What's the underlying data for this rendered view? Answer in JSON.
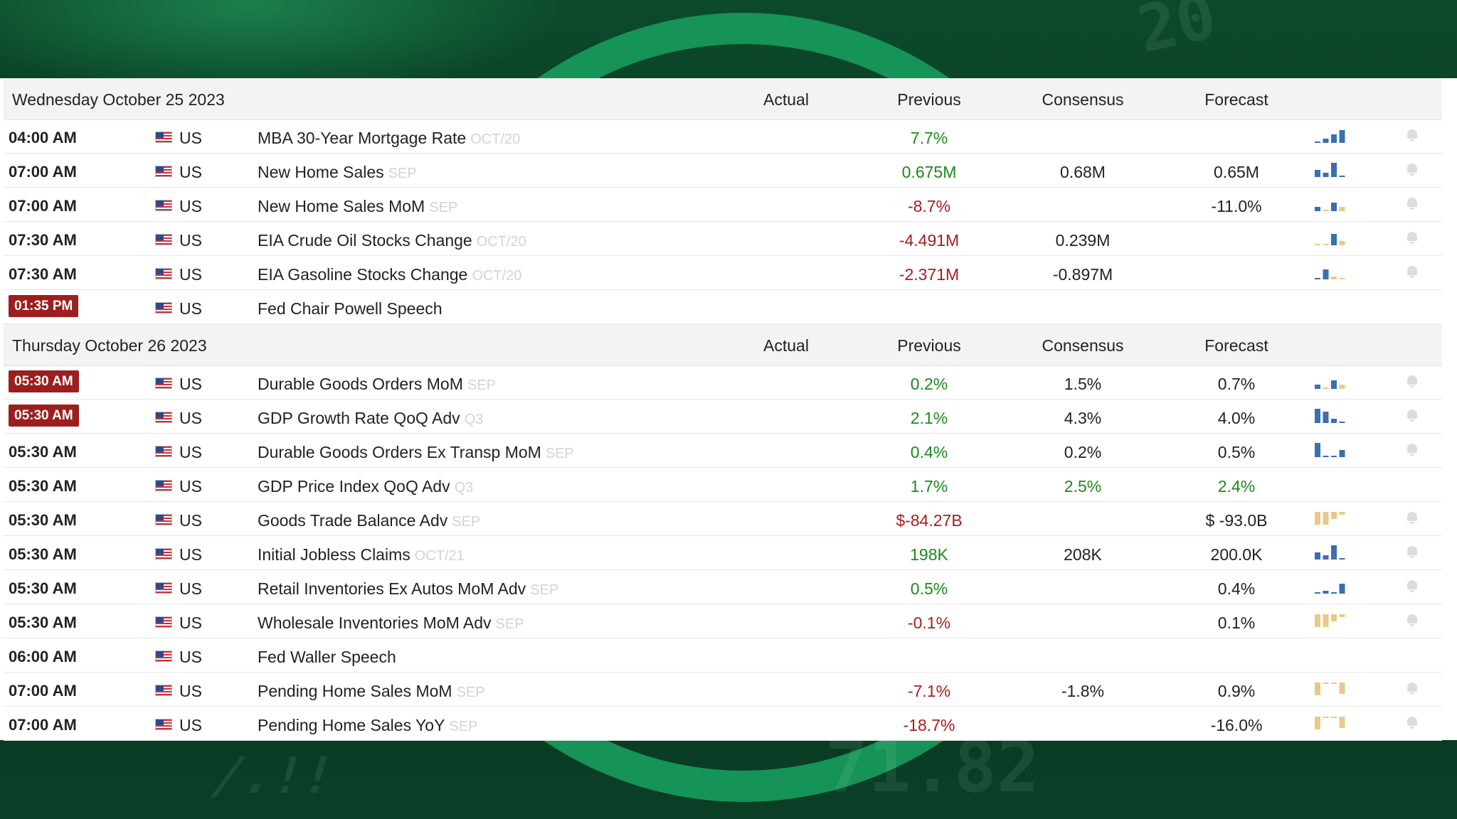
{
  "colors": {
    "positive": "#1a8a1a",
    "negative": "#a81c1c",
    "highlight_time": "#9c1f1f",
    "spark_blue": "#3a6fb0",
    "spark_gold": "#e8c98a"
  },
  "days": [
    {
      "date": "Wednesday October 25 2023",
      "columns": {
        "actual": "Actual",
        "previous": "Previous",
        "consensus": "Consensus",
        "forecast": "Forecast"
      },
      "rows": [
        {
          "time": "04:00 AM",
          "hl": false,
          "country": "US",
          "event": "MBA 30-Year Mortgage Rate",
          "ref": "OCT/20",
          "actual": "",
          "previous": "7.7%",
          "prev_color": "pos",
          "consensus": "",
          "cons_color": "",
          "forecast": "",
          "fc_color": "",
          "spark": "blue-rising",
          "bell": true
        },
        {
          "time": "07:00 AM",
          "hl": false,
          "country": "US",
          "event": "New Home Sales",
          "ref": "SEP",
          "actual": "",
          "previous": "0.675M",
          "prev_color": "pos",
          "consensus": "0.68M",
          "cons_color": "",
          "forecast": "0.65M",
          "fc_color": "",
          "spark": "blue-mixed",
          "bell": true
        },
        {
          "time": "07:00 AM",
          "hl": false,
          "country": "US",
          "event": "New Home Sales MoM",
          "ref": "SEP",
          "actual": "",
          "previous": "-8.7%",
          "prev_color": "neg",
          "consensus": "",
          "cons_color": "",
          "forecast": "-11.0%",
          "fc_color": "",
          "spark": "mixed-small",
          "bell": true
        },
        {
          "time": "07:30 AM",
          "hl": false,
          "country": "US",
          "event": "EIA Crude Oil Stocks Change",
          "ref": "OCT/20",
          "actual": "",
          "previous": "-4.491M",
          "prev_color": "neg",
          "consensus": "0.239M",
          "cons_color": "",
          "forecast": "",
          "fc_color": "",
          "spark": "gold-mostly",
          "bell": true
        },
        {
          "time": "07:30 AM",
          "hl": false,
          "country": "US",
          "event": "EIA Gasoline Stocks Change",
          "ref": "OCT/20",
          "actual": "",
          "previous": "-2.371M",
          "prev_color": "neg",
          "consensus": "-0.897M",
          "cons_color": "",
          "forecast": "",
          "fc_color": "",
          "spark": "blue-then-gold",
          "bell": true
        },
        {
          "time": "01:35 PM",
          "hl": true,
          "country": "US",
          "event": "Fed Chair Powell Speech",
          "ref": "",
          "actual": "",
          "previous": "",
          "prev_color": "",
          "consensus": "",
          "cons_color": "",
          "forecast": "",
          "fc_color": "",
          "spark": "",
          "bell": false
        }
      ]
    },
    {
      "date": "Thursday October 26 2023",
      "columns": {
        "actual": "Actual",
        "previous": "Previous",
        "consensus": "Consensus",
        "forecast": "Forecast"
      },
      "rows": [
        {
          "time": "05:30 AM",
          "hl": true,
          "country": "US",
          "event": "Durable Goods Orders MoM",
          "ref": "SEP",
          "actual": "",
          "previous": "0.2%",
          "prev_color": "pos",
          "consensus": "1.5%",
          "cons_color": "",
          "forecast": "0.7%",
          "fc_color": "",
          "spark": "mixed-small",
          "bell": true
        },
        {
          "time": "05:30 AM",
          "hl": true,
          "country": "US",
          "event": "GDP Growth Rate QoQ Adv",
          "ref": "Q3",
          "actual": "",
          "previous": "2.1%",
          "prev_color": "pos",
          "consensus": "4.3%",
          "cons_color": "",
          "forecast": "4.0%",
          "fc_color": "",
          "spark": "blue-falling",
          "bell": true
        },
        {
          "time": "05:30 AM",
          "hl": false,
          "country": "US",
          "event": "Durable Goods Orders Ex Transp MoM",
          "ref": "SEP",
          "actual": "",
          "previous": "0.4%",
          "prev_color": "pos",
          "consensus": "0.2%",
          "cons_color": "",
          "forecast": "0.5%",
          "fc_color": "",
          "spark": "blue-edges",
          "bell": true
        },
        {
          "time": "05:30 AM",
          "hl": false,
          "country": "US",
          "event": "GDP Price Index QoQ Adv",
          "ref": "Q3",
          "actual": "",
          "previous": "1.7%",
          "prev_color": "pos",
          "consensus": "2.5%",
          "cons_color": "pos",
          "forecast": "2.4%",
          "fc_color": "pos",
          "spark": "",
          "bell": false
        },
        {
          "time": "05:30 AM",
          "hl": false,
          "country": "US",
          "event": "Goods Trade Balance Adv",
          "ref": "SEP",
          "actual": "",
          "previous": "$-84.27B",
          "prev_color": "neg",
          "consensus": "",
          "cons_color": "",
          "forecast": "$ -93.0B",
          "fc_color": "",
          "spark": "gold-neg",
          "bell": true
        },
        {
          "time": "05:30 AM",
          "hl": false,
          "country": "US",
          "event": "Initial Jobless Claims",
          "ref": "OCT/21",
          "actual": "",
          "previous": "198K",
          "prev_color": "pos",
          "consensus": "208K",
          "cons_color": "",
          "forecast": "200.0K",
          "fc_color": "",
          "spark": "blue-mixed",
          "bell": true
        },
        {
          "time": "05:30 AM",
          "hl": false,
          "country": "US",
          "event": "Retail Inventories Ex Autos MoM Adv",
          "ref": "SEP",
          "actual": "",
          "previous": "0.5%",
          "prev_color": "pos",
          "consensus": "",
          "cons_color": "",
          "forecast": "0.4%",
          "fc_color": "",
          "spark": "sparse-blue",
          "bell": true
        },
        {
          "time": "05:30 AM",
          "hl": false,
          "country": "US",
          "event": "Wholesale Inventories MoM Adv",
          "ref": "SEP",
          "actual": "",
          "previous": "-0.1%",
          "prev_color": "neg",
          "consensus": "",
          "cons_color": "",
          "forecast": "0.1%",
          "fc_color": "",
          "spark": "gold-neg",
          "bell": true
        },
        {
          "time": "06:00 AM",
          "hl": false,
          "country": "US",
          "event": "Fed Waller Speech",
          "ref": "",
          "actual": "",
          "previous": "",
          "prev_color": "",
          "consensus": "",
          "cons_color": "",
          "forecast": "",
          "fc_color": "",
          "spark": "",
          "bell": false
        },
        {
          "time": "07:00 AM",
          "hl": false,
          "country": "US",
          "event": "Pending Home Sales MoM",
          "ref": "SEP",
          "actual": "",
          "previous": "-7.1%",
          "prev_color": "neg",
          "consensus": "-1.8%",
          "cons_color": "",
          "forecast": "0.9%",
          "fc_color": "",
          "spark": "gold-flat",
          "bell": true
        },
        {
          "time": "07:00 AM",
          "hl": false,
          "country": "US",
          "event": "Pending Home Sales YoY",
          "ref": "SEP",
          "actual": "",
          "previous": "-18.7%",
          "prev_color": "neg",
          "consensus": "",
          "cons_color": "",
          "forecast": "-16.0%",
          "fc_color": "",
          "spark": "gold-flat",
          "bell": true
        }
      ]
    }
  ]
}
